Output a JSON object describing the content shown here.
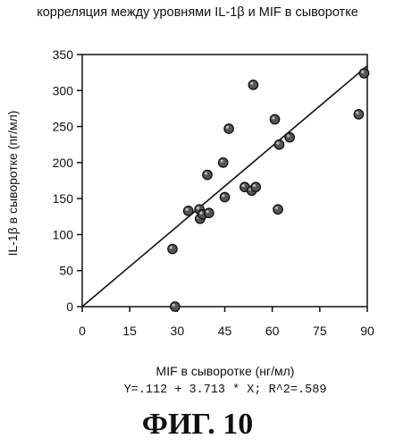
{
  "title": "корреляция между уровнями IL-1β и MIF в сыворотке",
  "figure_label": "ФИГ. 10",
  "equation": "Y=.112 + 3.713 * X; R^2=.589",
  "chart_data": {
    "type": "scatter",
    "title": "корреляция между уровнями IL-1β и MIF в сыворотке",
    "xlabel": "MIF в сыворотке (нг/мл)",
    "ylabel": "IL-1β в сыворотке (пг/мл)",
    "xlim": [
      0,
      90
    ],
    "ylim": [
      0,
      350
    ],
    "xticks": [
      0,
      15,
      30,
      45,
      60,
      75,
      90
    ],
    "yticks": [
      0,
      50,
      100,
      150,
      200,
      250,
      300,
      350
    ],
    "grid": false,
    "points": [
      {
        "x": 28.5,
        "y": 80
      },
      {
        "x": 29.3,
        "y": 0
      },
      {
        "x": 33.5,
        "y": 133
      },
      {
        "x": 37.0,
        "y": 135
      },
      {
        "x": 37.2,
        "y": 122
      },
      {
        "x": 38.0,
        "y": 128
      },
      {
        "x": 39.5,
        "y": 183
      },
      {
        "x": 40.0,
        "y": 130
      },
      {
        "x": 44.5,
        "y": 200
      },
      {
        "x": 45.0,
        "y": 152
      },
      {
        "x": 46.3,
        "y": 247
      },
      {
        "x": 51.3,
        "y": 166
      },
      {
        "x": 53.5,
        "y": 161
      },
      {
        "x": 54.0,
        "y": 308
      },
      {
        "x": 54.8,
        "y": 166
      },
      {
        "x": 60.8,
        "y": 260
      },
      {
        "x": 61.8,
        "y": 135
      },
      {
        "x": 62.2,
        "y": 225
      },
      {
        "x": 65.5,
        "y": 235
      },
      {
        "x": 87.3,
        "y": 267
      },
      {
        "x": 89.0,
        "y": 324
      }
    ],
    "regression": {
      "intercept": 0.112,
      "slope": 3.713,
      "r2": 0.589
    }
  }
}
